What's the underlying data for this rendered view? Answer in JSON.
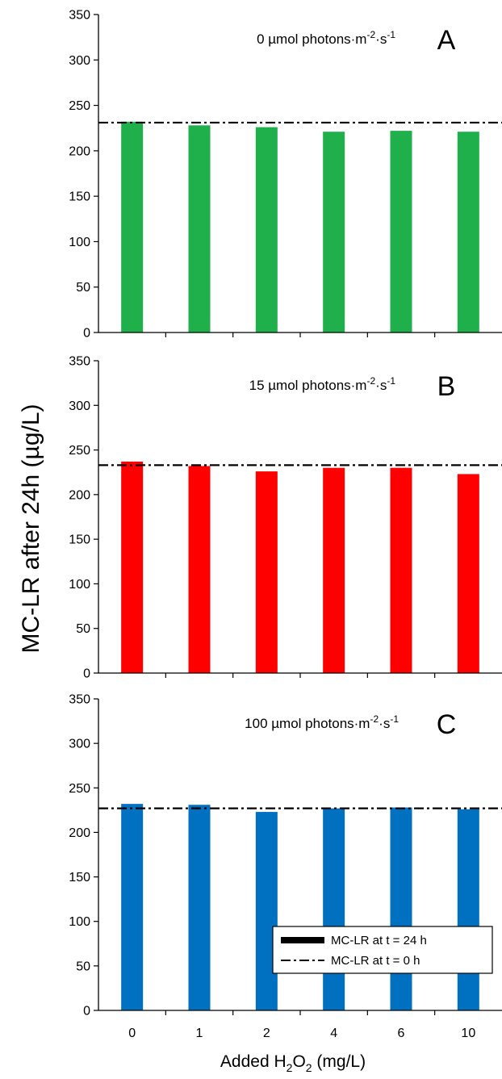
{
  "chart_data": {
    "type": "bar",
    "ylabel": "MC-LR after 24h (µg/L)",
    "xlabel_main": "Added H",
    "xlabel_sub": "2",
    "xlabel_mid": "O",
    "xlabel_end": " (mg/L)",
    "categories": [
      "0",
      "1",
      "2",
      "4",
      "6",
      "10"
    ],
    "ylim": [
      0,
      350
    ],
    "yticks": [
      "0",
      "50",
      "100",
      "150",
      "200",
      "250",
      "300",
      "350"
    ],
    "grid": false,
    "legend": {
      "placement": "right",
      "entries": [
        {
          "label": "MC-LR at t = 24 h",
          "style": "solid"
        },
        {
          "label": "MC-LR at t = 0 h",
          "style": "dash-dot"
        }
      ]
    },
    "panels": [
      {
        "letter": "A",
        "title_pre": "0 µmol photons·m",
        "title_sup1": "-2",
        "title_mid": "·s",
        "title_sup2": "-1",
        "color": "#1fb04b",
        "values": [
          232,
          228,
          226,
          221,
          222,
          221
        ],
        "reference_t0": 231
      },
      {
        "letter": "B",
        "title_pre": "15 µmol photons·m",
        "title_sup1": "-2",
        "title_mid": "·s",
        "title_sup2": "-1",
        "color": "#ff0000",
        "values": [
          237,
          232,
          226,
          230,
          230,
          223
        ],
        "reference_t0": 233
      },
      {
        "letter": "C",
        "title_pre": "100 µmol photons·m",
        "title_sup1": "-2",
        "title_mid": "·s",
        "title_sup2": "-1",
        "color": "#0070c0",
        "values": [
          232,
          231,
          223,
          227,
          228,
          226
        ],
        "reference_t0": 227
      }
    ]
  }
}
